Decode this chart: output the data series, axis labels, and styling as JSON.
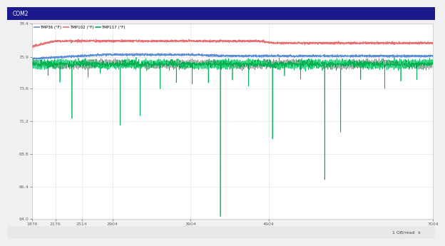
{
  "title": "COM2",
  "legend_labels": [
    "TMP36 (°F)",
    "TMP102 (°F)",
    "TMP117 (°F)"
  ],
  "colors": [
    "#5b8dd9",
    "#e87070",
    "#00b050"
  ],
  "bg_color": "#f0f0f0",
  "plot_bg": "#ffffff",
  "titlebar_color": "#1a1a8c",
  "xmin": 1876,
  "xmax": 7004,
  "ymin": 64.0,
  "ymax": 78.4,
  "yticks": [
    64.0,
    66.4,
    68.8,
    71.2,
    73.6,
    75.9,
    78.4
  ],
  "xticks": [
    1876,
    2176,
    2514,
    2904,
    3904,
    4904,
    7004
  ],
  "tmp36_mean": 76.0,
  "tmp102_mean": 77.1,
  "tmp117_mean": 75.4,
  "spike_positions": [
    0.1,
    0.22,
    0.27,
    0.47,
    0.6,
    0.73,
    0.77
  ],
  "spike_depths": [
    -4.0,
    -4.5,
    -3.8,
    -11.2,
    -5.5,
    -8.5,
    -5.0
  ]
}
